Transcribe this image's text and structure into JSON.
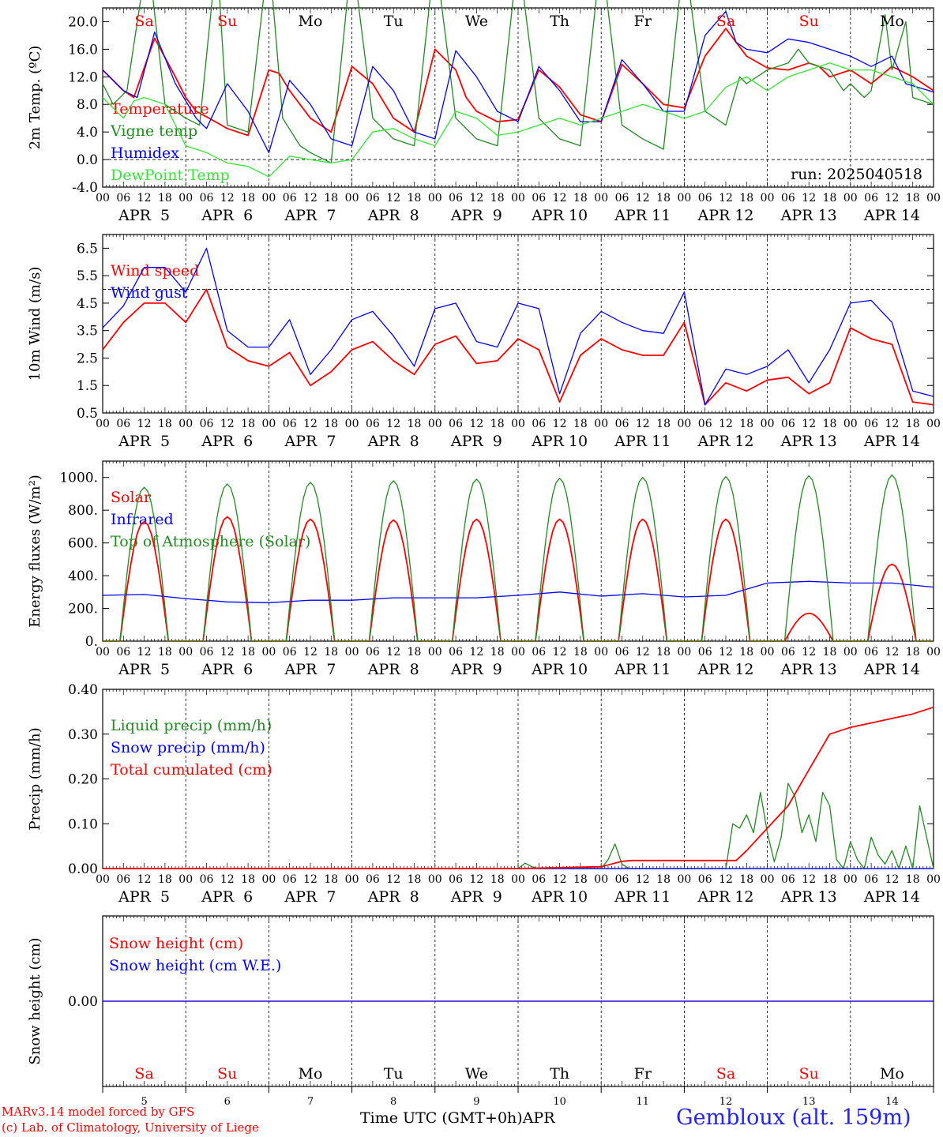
{
  "page": {
    "run_label": "run: 2025040518",
    "model_credit": "MARv3.14 model forced by GFS",
    "lab_credit": "(c) Lab. of Climatology, University of Liege",
    "time_axis_label": "Time UTC (GMT+0h)",
    "month_label": "APR",
    "station": "Gembloux (alt. 159m)"
  },
  "days": {
    "weekday_labels": [
      "Sa",
      "Su",
      "Mo",
      "Tu",
      "We",
      "Th",
      "Fr",
      "Sa",
      "Su",
      "Mo"
    ],
    "weekend": [
      true,
      true,
      false,
      false,
      false,
      false,
      false,
      true,
      true,
      false
    ],
    "date_labels": [
      "APR  5",
      "APR  6",
      "APR  7",
      "APR  8",
      "APR  9",
      "APR 10",
      "APR 11",
      "APR 12",
      "APR 13",
      "APR 14"
    ],
    "day_numbers": [
      "5",
      "6",
      "7",
      "8",
      "9",
      "10",
      "11",
      "12",
      "13",
      "14"
    ],
    "hour_ticks": [
      "00",
      "06",
      "12",
      "18"
    ]
  },
  "colors": {
    "red": "#ff0000",
    "green": "#1e8c1e",
    "blue": "#0000ff",
    "lightgreen": "#32e632",
    "black": "#000000"
  },
  "chart_data": [
    {
      "type": "line",
      "ylabel": "2m Temp. (ºC)",
      "ylim": [
        -4,
        22
      ],
      "yticks": [
        "-4.0",
        "0.0",
        "4.0",
        "8.0",
        "12.0",
        "16.0",
        "20.0"
      ],
      "yticks_values": [
        -4,
        0,
        4,
        8,
        12,
        16,
        20
      ],
      "x_unit": "hours since APR 5 00 UTC",
      "xlim": [
        0,
        240
      ],
      "dashed_ref": 0,
      "legend": [
        "Temperature",
        "Vigne temp",
        "Humidex",
        "DewPoint Temp"
      ],
      "series": [
        {
          "name": "Temperature",
          "color": "red",
          "x": [
            0,
            6,
            9,
            15,
            21,
            24,
            27,
            30,
            36,
            42,
            48,
            51,
            54,
            60,
            66,
            72,
            78,
            84,
            90,
            96,
            102,
            105,
            108,
            114,
            120,
            126,
            132,
            138,
            144,
            150,
            156,
            162,
            168,
            174,
            180,
            186,
            192,
            198,
            204,
            207,
            210,
            216,
            222,
            228,
            234,
            240
          ],
          "y": [
            13,
            10,
            9,
            17.6,
            12,
            9,
            7,
            6.2,
            4.5,
            3.5,
            13,
            12.5,
            10,
            6,
            4,
            13.5,
            11,
            6,
            4,
            16,
            13,
            9,
            7,
            5.5,
            5.8,
            13,
            10.5,
            6.5,
            5.5,
            13.8,
            11,
            8,
            7.5,
            15,
            19,
            15,
            13.3,
            13,
            14,
            13.5,
            12,
            13,
            11,
            13.5,
            12,
            10
          ]
        },
        {
          "name": "Vigne temp",
          "color": "green",
          "x": [
            0,
            3,
            7,
            13,
            18,
            24,
            28,
            33,
            36,
            42,
            48,
            52,
            57,
            60,
            66,
            72,
            78,
            84,
            90,
            96,
            102,
            108,
            114,
            120,
            126,
            132,
            138,
            144,
            150,
            156,
            162,
            168,
            174,
            180,
            184,
            186,
            192,
            198,
            201,
            204,
            210,
            214,
            216,
            220,
            222,
            226,
            228,
            232,
            234,
            240
          ],
          "y": [
            11,
            8,
            10,
            30,
            8,
            6,
            5,
            30,
            5,
            4,
            30,
            6,
            2,
            1,
            -0.5,
            30,
            6,
            3,
            2,
            30,
            6,
            3,
            2,
            30,
            6,
            3,
            2,
            30,
            5,
            3,
            1.5,
            30,
            7,
            5,
            12,
            11,
            13,
            14,
            16,
            14,
            13,
            10,
            11,
            9,
            10,
            21,
            13,
            20,
            9,
            8
          ]
        },
        {
          "name": "Humidex",
          "color": "blue",
          "x": [
            0,
            6,
            10,
            15,
            21,
            27,
            30,
            36,
            42,
            48,
            54,
            60,
            66,
            72,
            78,
            84,
            90,
            96,
            102,
            108,
            114,
            120,
            126,
            132,
            138,
            144,
            150,
            156,
            162,
            168,
            174,
            180,
            183,
            186,
            192,
            198,
            204,
            210,
            216,
            220,
            222,
            228,
            232,
            240
          ],
          "y": [
            13,
            10,
            9,
            18.5,
            11,
            6,
            4.5,
            11,
            7,
            1,
            11.5,
            8,
            3,
            2,
            13.5,
            10,
            4,
            3,
            15.8,
            12,
            7,
            5.5,
            13.5,
            10,
            5.5,
            5.5,
            14.5,
            11,
            7,
            7,
            18,
            21.5,
            17,
            16,
            15.5,
            17.5,
            17,
            16,
            15,
            14,
            13.5,
            15,
            11,
            9.8
          ]
        },
        {
          "name": "DewPoint Temp",
          "color": "lightgreen",
          "x": [
            0,
            6,
            9,
            12,
            18,
            24,
            30,
            36,
            42,
            48,
            54,
            60,
            66,
            72,
            78,
            84,
            90,
            96,
            102,
            108,
            114,
            120,
            126,
            132,
            138,
            144,
            150,
            156,
            162,
            168,
            174,
            180,
            186,
            192,
            198,
            204,
            210,
            216,
            222,
            228,
            234,
            240
          ],
          "y": [
            9,
            6,
            8.5,
            9,
            8,
            2,
            1,
            -0.5,
            -1,
            -2.5,
            0.5,
            0,
            -0.5,
            0,
            4,
            4.5,
            3,
            2,
            7,
            6,
            3.5,
            4,
            5,
            6,
            5,
            6,
            7,
            8,
            7,
            6,
            7,
            10.5,
            12,
            10,
            12,
            13,
            14,
            13,
            13,
            12,
            11,
            8
          ]
        }
      ]
    },
    {
      "type": "line",
      "ylabel": "10m Wind (m/s)",
      "ylim": [
        0.5,
        7
      ],
      "yticks": [
        "0.5",
        "1.5",
        "2.5",
        "3.5",
        "4.5",
        "5.5",
        "6.5"
      ],
      "yticks_values": [
        0.5,
        1.5,
        2.5,
        3.5,
        4.5,
        5.5,
        6.5
      ],
      "x_unit": "hours since APR 5 00 UTC",
      "xlim": [
        0,
        240
      ],
      "dashed_ref": 5,
      "legend": [
        "Wind speed",
        "Wind gust"
      ],
      "series": [
        {
          "name": "Wind speed",
          "color": "red",
          "x": [
            0,
            6,
            12,
            18,
            24,
            30,
            36,
            42,
            48,
            54,
            60,
            66,
            72,
            78,
            84,
            90,
            96,
            102,
            108,
            114,
            120,
            126,
            132,
            138,
            144,
            150,
            156,
            162,
            168,
            174,
            180,
            186,
            192,
            198,
            204,
            210,
            216,
            222,
            228,
            234,
            240
          ],
          "y": [
            2.8,
            3.8,
            4.5,
            4.5,
            3.8,
            5,
            2.9,
            2.4,
            2.2,
            2.7,
            1.5,
            2,
            2.8,
            3.1,
            2.4,
            1.9,
            3,
            3.3,
            2.3,
            2.4,
            3.2,
            2.8,
            0.9,
            2.6,
            3.2,
            2.8,
            2.6,
            2.6,
            3.8,
            0.8,
            1.6,
            1.3,
            1.7,
            1.8,
            1.2,
            1.6,
            3.6,
            3.2,
            3.0,
            0.9,
            0.8
          ]
        },
        {
          "name": "Wind gust",
          "color": "blue",
          "x": [
            0,
            6,
            12,
            18,
            24,
            30,
            36,
            42,
            48,
            54,
            60,
            66,
            72,
            78,
            84,
            90,
            96,
            102,
            108,
            114,
            120,
            126,
            132,
            138,
            144,
            150,
            156,
            162,
            168,
            174,
            180,
            186,
            192,
            198,
            204,
            210,
            216,
            222,
            228,
            234,
            240
          ],
          "y": [
            3.6,
            4.4,
            5.8,
            5.8,
            4.9,
            6.5,
            3.5,
            2.9,
            2.9,
            3.9,
            1.9,
            2.8,
            3.9,
            4.2,
            3.3,
            2.2,
            4.3,
            4.5,
            3.1,
            2.9,
            4.5,
            4.3,
            1.2,
            3.4,
            4.2,
            3.8,
            3.5,
            3.4,
            4.9,
            0.8,
            2.1,
            1.9,
            2.2,
            2.8,
            1.6,
            2.8,
            4.5,
            4.6,
            3.8,
            1.3,
            1.1
          ]
        }
      ]
    },
    {
      "type": "line",
      "ylabel": "Energy fluxes (W/m²)",
      "ylim": [
        0,
        1100
      ],
      "yticks": [
        "0.",
        "200.",
        "400.",
        "600.",
        "800.",
        "1000."
      ],
      "yticks_values": [
        0,
        200,
        400,
        600,
        800,
        1000
      ],
      "x_unit": "hours since APR 5 00 UTC",
      "xlim": [
        0,
        240
      ],
      "legend": [
        "Solar",
        "Infrared",
        "Top of Atmosphere (Solar)"
      ],
      "series": [
        {
          "name": "Solar",
          "color": "red",
          "peaks": [
            730,
            760,
            745,
            740,
            745,
            745,
            745,
            745,
            170,
            470
          ],
          "sunrise": 5,
          "sunset": 19
        },
        {
          "name": "Infrared",
          "color": "blue",
          "x": [
            0,
            12,
            24,
            36,
            48,
            60,
            72,
            84,
            96,
            108,
            120,
            132,
            144,
            156,
            168,
            180,
            192,
            204,
            216,
            228,
            240
          ],
          "y": [
            280,
            285,
            260,
            240,
            235,
            250,
            250,
            265,
            265,
            265,
            280,
            300,
            275,
            290,
            270,
            280,
            355,
            365,
            355,
            355,
            330
          ]
        },
        {
          "name": "Top of Atmosphere (Solar)",
          "color": "green",
          "peaks": [
            940,
            960,
            970,
            980,
            990,
            995,
            1000,
            1005,
            1010,
            1015
          ],
          "sunrise": 5,
          "sunset": 19
        }
      ]
    },
    {
      "type": "line",
      "ylabel": "Precip (mm/h)",
      "ylim": [
        0,
        0.4
      ],
      "yticks": [
        "0.00",
        "0.10",
        "0.20",
        "0.30",
        "0.40"
      ],
      "yticks_values": [
        0,
        0.1,
        0.2,
        0.3,
        0.4
      ],
      "x_unit": "hours since APR 5 00 UTC",
      "xlim": [
        0,
        240
      ],
      "legend": [
        "Liquid precip (mm/h)",
        "Snow precip (mm/h)",
        "Total cumulated (cm)"
      ],
      "series": [
        {
          "name": "Liquid precip (mm/h)",
          "color": "green",
          "x": [
            0,
            120,
            122,
            124,
            126,
            144,
            146,
            148,
            150,
            152,
            180,
            182,
            184,
            186,
            188,
            190,
            192,
            194,
            196,
            198,
            200,
            202,
            204,
            206,
            208,
            210,
            212,
            214,
            216,
            218,
            220,
            222,
            224,
            226,
            228,
            230,
            232,
            234,
            236,
            240
          ],
          "y": [
            0,
            0,
            0.012,
            0.004,
            0,
            0,
            0.02,
            0.055,
            0.01,
            0,
            0,
            0.1,
            0.09,
            0.12,
            0.08,
            0.17,
            0.08,
            0.015,
            0.07,
            0.19,
            0.16,
            0.08,
            0.12,
            0.06,
            0.17,
            0.14,
            0.02,
            0,
            0.06,
            0.02,
            0,
            0.07,
            0.03,
            0.01,
            0.04,
            0,
            0.05,
            0,
            0.14,
            0
          ]
        },
        {
          "name": "Snow precip (mm/h)",
          "color": "blue",
          "x": [
            0,
            240
          ],
          "y": [
            0,
            0
          ]
        },
        {
          "name": "Total cumulated (cm)",
          "color": "red",
          "x": [
            0,
            120,
            144,
            150,
            153,
            183,
            186,
            192,
            198,
            204,
            210,
            216,
            222,
            228,
            234,
            240
          ],
          "y": [
            0,
            0,
            0.004,
            0.016,
            0.018,
            0.018,
            0.04,
            0.09,
            0.14,
            0.22,
            0.3,
            0.315,
            0.325,
            0.335,
            0.345,
            0.36
          ]
        }
      ]
    },
    {
      "type": "line",
      "ylabel": "Snow height (cm)",
      "yticks": [
        "0.00"
      ],
      "yticks_values": [
        0
      ],
      "ylim": [
        -1,
        1
      ],
      "x_unit": "hours since APR 5 00 UTC",
      "xlim": [
        0,
        240
      ],
      "legend": [
        "Snow height (cm)",
        "Snow height (cm W.E.)"
      ],
      "series": [
        {
          "name": "Snow height (cm)",
          "color": "red",
          "x": [
            0,
            240
          ],
          "y": [
            0,
            0
          ]
        },
        {
          "name": "Snow height (cm W.E.)",
          "color": "blue",
          "x": [
            0,
            240
          ],
          "y": [
            0,
            0
          ]
        }
      ]
    }
  ]
}
